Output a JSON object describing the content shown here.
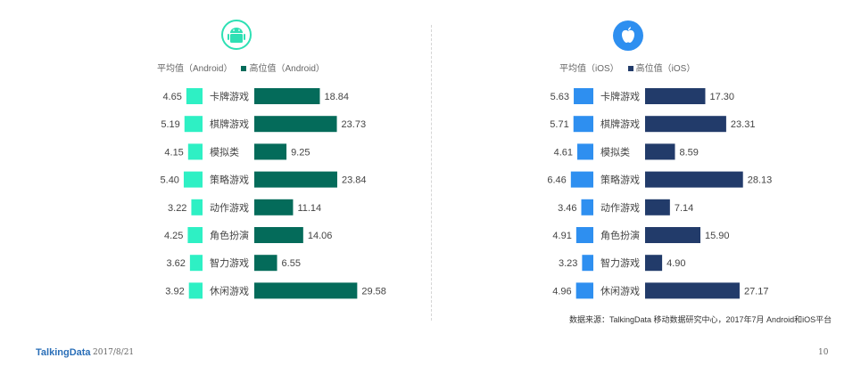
{
  "chart_data": [
    {
      "type": "bar",
      "platform": "Android",
      "categories": [
        "卡牌游戏",
        "棋牌游戏",
        "模拟类",
        "策略游戏",
        "动作游戏",
        "角色扮演",
        "智力游戏",
        "休闲游戏"
      ],
      "series": [
        {
          "name": "平均值（Android）",
          "values": [
            4.65,
            5.19,
            4.15,
            5.4,
            3.22,
            4.25,
            3.62,
            3.92
          ],
          "color": "#2ef0c4"
        },
        {
          "name": "高位值（Android）",
          "values": [
            18.84,
            23.73,
            9.25,
            23.84,
            11.14,
            14.06,
            6.55,
            29.58
          ],
          "color": "#046b5a"
        }
      ]
    },
    {
      "type": "bar",
      "platform": "iOS",
      "categories": [
        "卡牌游戏",
        "棋牌游戏",
        "模拟类",
        "策略游戏",
        "动作游戏",
        "角色扮演",
        "智力游戏",
        "休闲游戏"
      ],
      "series": [
        {
          "name": "平均值（iOS）",
          "values": [
            5.63,
            5.71,
            4.61,
            6.46,
            3.46,
            4.91,
            3.23,
            4.96
          ],
          "color": "#2e8ff0"
        },
        {
          "name": "高位值（iOS）",
          "values": [
            17.3,
            23.31,
            8.59,
            28.13,
            7.14,
            15.9,
            4.9,
            27.17
          ],
          "color": "#223b6a"
        }
      ]
    }
  ],
  "legend": {
    "android_avg": "平均值（Android）",
    "android_high": "高位值（Android）",
    "ios_avg": "平均值（iOS）",
    "ios_high": "高位值（iOS）"
  },
  "icons": {
    "android": "android-icon",
    "ios": "apple-icon"
  },
  "source": "数据来源：TalkingData 移动数据研究中心，2017年7月 Android和iOS平台",
  "footer": {
    "brand": "TalkingData",
    "date": "2017/8/21",
    "page": "10"
  }
}
